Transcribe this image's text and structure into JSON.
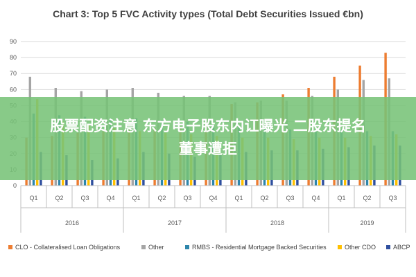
{
  "chart_data": {
    "type": "bar",
    "title": "Chart 3: Top 5 FVC Activity types (Total Debt Securities Issued €bn)",
    "xlabel": "",
    "ylabel": "",
    "ylim": [
      0,
      90
    ],
    "yticks": [
      0,
      10,
      20,
      30,
      40,
      50,
      60,
      70,
      80,
      90
    ],
    "grid": true,
    "legend_position": "bottom",
    "categories": [
      "Q1",
      "Q2",
      "Q3",
      "Q4",
      "Q1",
      "Q2",
      "Q3",
      "Q4",
      "Q1",
      "Q2",
      "Q3",
      "Q4",
      "Q1",
      "Q2",
      "Q3"
    ],
    "years": [
      {
        "label": "2016",
        "quarters": 4
      },
      {
        "label": "2017",
        "quarters": 4
      },
      {
        "label": "2018",
        "quarters": 4
      },
      {
        "label": "2019",
        "quarters": 3
      }
    ],
    "series": [
      {
        "name": "CLO - Collateralised Loan Obligations",
        "color": "#ED7D31",
        "values": [
          30,
          31,
          33,
          34,
          35,
          36,
          37,
          40,
          51,
          52,
          57,
          61,
          68,
          75,
          83
        ]
      },
      {
        "name": "Other",
        "color": "#A5A5A5",
        "values": [
          68,
          61,
          59,
          60,
          61,
          58,
          56,
          56,
          52,
          53,
          53,
          56,
          60,
          66,
          67
        ]
      },
      {
        "name": "RMBS - Residential Mortgage Backed Securities",
        "color": "#2E86AB",
        "values": [
          45,
          44,
          43,
          42,
          42,
          41,
          40,
          38,
          37,
          36,
          35,
          35,
          35,
          34,
          34
        ]
      },
      {
        "name": "Other CDO",
        "color": "#FFC000",
        "values": [
          54,
          40,
          38,
          36,
          34,
          33,
          32,
          31,
          30,
          30,
          29,
          30,
          30,
          31,
          32
        ]
      },
      {
        "name": "ABCP",
        "color": "#2F4F9E",
        "values": [
          21,
          19,
          16,
          17,
          21,
          20,
          18,
          19,
          21,
          22,
          22,
          23,
          24,
          25,
          25
        ]
      }
    ]
  },
  "overlay": {
    "line1": "股票配资注意 东方电子股东内讧曝光 二股东提名",
    "line2": "董事遭拒"
  }
}
